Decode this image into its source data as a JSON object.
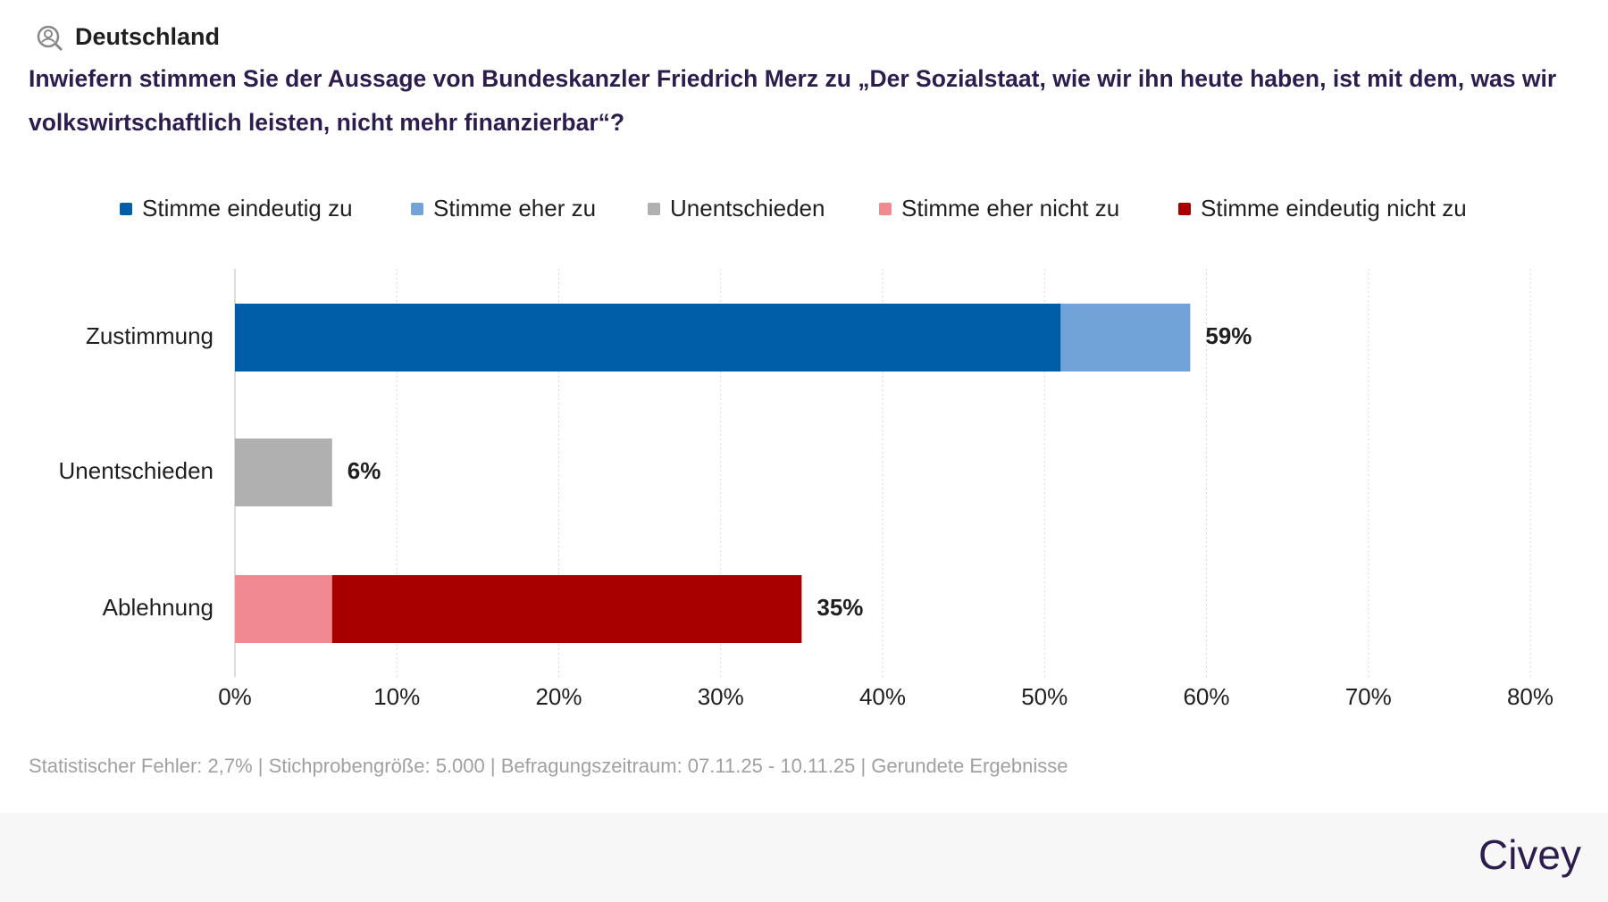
{
  "header": {
    "region": "Deutschland"
  },
  "chart_data": {
    "type": "stacked-bar-horizontal",
    "title": "Inwiefern stimmen Sie der Aussage von Bundeskanzler Friedrich Merz zu „Der Sozialstaat, wie wir ihn heute haben, ist mit dem, was wir volkswirtschaftlich leisten, nicht mehr finanzierbar“?",
    "categories": [
      "Zustimmung",
      "Unentschieden",
      "Ablehnung"
    ],
    "series": [
      {
        "name": "Stimme eindeutig zu",
        "color": "#005ea8",
        "values": [
          51,
          null,
          null
        ]
      },
      {
        "name": "Stimme eher zu",
        "color": "#72a3d8",
        "values": [
          8,
          null,
          null
        ]
      },
      {
        "name": "Unentschieden",
        "color": "#b0b0b0",
        "values": [
          null,
          6,
          null
        ]
      },
      {
        "name": "Stimme eher nicht zu",
        "color": "#f08a90",
        "values": [
          null,
          null,
          6
        ]
      },
      {
        "name": "Stimme eindeutig nicht zu",
        "color": "#a80000",
        "values": [
          null,
          null,
          29
        ]
      }
    ],
    "totals": [
      59,
      6,
      35
    ],
    "total_labels": [
      "59%",
      "6%",
      "35%"
    ],
    "xlim": [
      0,
      80
    ],
    "xticks": [
      {
        "value": 0,
        "label": "0%"
      },
      {
        "value": 10,
        "label": "10%"
      },
      {
        "value": 20,
        "label": "20%"
      },
      {
        "value": 30,
        "label": "30%"
      },
      {
        "value": 40,
        "label": "40%"
      },
      {
        "value": 50,
        "label": "50%"
      },
      {
        "value": 60,
        "label": "60%"
      },
      {
        "value": 70,
        "label": "70%"
      },
      {
        "value": 80,
        "label": "80%"
      }
    ],
    "grid": true,
    "legend": "top",
    "footnote": "Statistischer Fehler: 2,7% | Stichprobengröße: 5.000 | Befragungszeitraum: 07.11.25 - 10.11.25 | Gerundete Ergebnisse"
  },
  "brand": "Civey"
}
